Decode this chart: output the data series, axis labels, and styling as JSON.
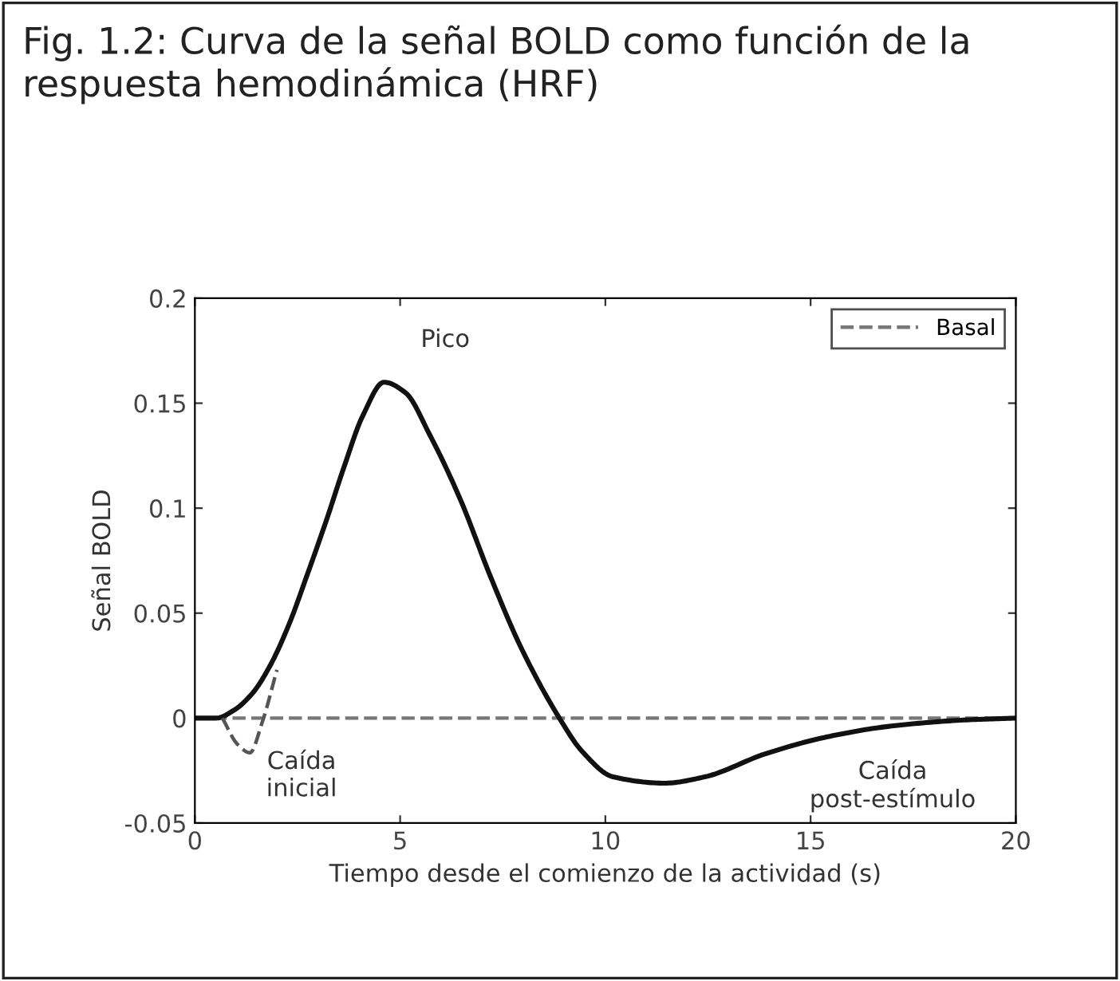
{
  "chart_data": {
    "type": "line",
    "title": "Fig. 1.2: Curva de la señal BOLD como función de la respuesta hemodinámica (HRF)",
    "xlabel": "Tiempo desde el comienzo de la actividad (s)",
    "ylabel": "Señal BOLD",
    "series": [
      {
        "color": "#111111",
        "line_style": "solid",
        "x": [
          0,
          0.52,
          0.97,
          1.41,
          1.86,
          2.3,
          2.75,
          3.2,
          3.64,
          4.09,
          4.61,
          5.13,
          5.72,
          6.47,
          7.21,
          7.96,
          8.88,
          9.44,
          10.19,
          11.45,
          12.42,
          13.9,
          15.39,
          16.88,
          18.66,
          20
        ],
        "values": [
          0,
          0,
          0.004,
          0.012,
          0.026,
          0.045,
          0.069,
          0.094,
          0.12,
          0.144,
          0.16,
          0.155,
          0.135,
          0.104,
          0.067,
          0.033,
          0,
          -0.016,
          -0.028,
          -0.031,
          -0.028,
          -0.017,
          -0.009,
          -0.004,
          -0.001,
          0
        ]
      },
      {
        "color": "#555555",
        "line_style": "dashed",
        "x": [
          0.67,
          1.04,
          1.34,
          1.64,
          2.0
        ],
        "values": [
          0,
          -0.0125,
          -0.0165,
          -0.002,
          0.023
        ]
      }
    ],
    "ref_lines": [
      {
        "axis": "y",
        "value": 0,
        "label": "Basal",
        "color": "#777777",
        "line_style": "dashed"
      }
    ],
    "annotations": [
      "Pico",
      "Caída\ninicial",
      "Caída\npost-estímulo"
    ],
    "xlim": [
      0,
      20
    ],
    "ylim": [
      -0.05,
      0.2
    ],
    "xticks": [
      0,
      5,
      10,
      15,
      20
    ],
    "yticks": [
      {
        "value": -0.05,
        "label": "-0.05"
      },
      0,
      0.05,
      0.1,
      0.15,
      0.2
    ],
    "grid": false,
    "legend": "top right",
    "marker": "none"
  }
}
